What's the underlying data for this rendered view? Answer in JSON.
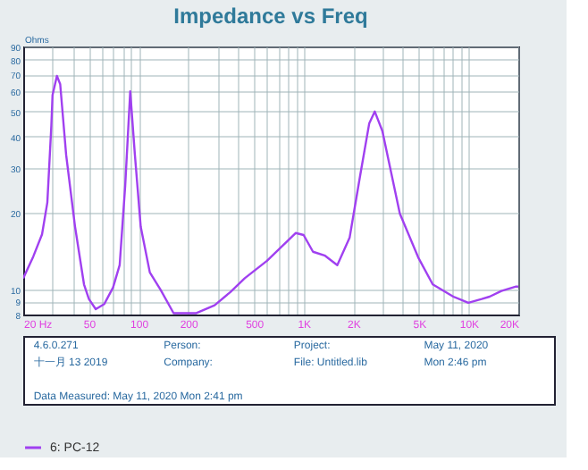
{
  "chart_data": {
    "type": "line",
    "title": "Impedance vs Freq",
    "ylabel": "Ohms",
    "x": [
      20,
      23,
      26,
      28,
      29.6,
      30.1,
      32,
      33.5,
      36.4,
      41.2,
      46.7,
      50,
      55,
      62,
      70,
      76.8,
      83,
      89,
      95,
      103,
      117,
      136,
      163,
      224,
      289,
      360,
      440,
      600,
      895,
      1000,
      1140,
      1350,
      1600,
      1900,
      2200,
      2500,
      2700,
      3000,
      3830,
      4950,
      6060,
      8080,
      9960,
      12000,
      13400,
      15800,
      19400,
      20000
    ],
    "series": [
      {
        "name": "6: PC-12",
        "color": "#a040f0",
        "values": [
          11.1,
          13.5,
          16.5,
          22,
          44,
          58,
          69,
          64,
          33.8,
          17.7,
          10.5,
          9.2,
          8.4,
          8.8,
          10.2,
          12.5,
          25.7,
          60,
          33.8,
          17.7,
          11.7,
          10,
          8.1,
          8.1,
          8.7,
          9.8,
          11.1,
          13,
          16.7,
          16.4,
          14.1,
          13.6,
          12.5,
          16,
          28,
          45,
          50,
          42,
          19.9,
          13.4,
          10.5,
          9.4,
          8.9,
          9.2,
          9.4,
          9.9,
          10.3,
          10.3
        ]
      }
    ],
    "xlim": [
      20,
      20000
    ],
    "xticks": [
      {
        "value": 20,
        "label": "20 Hz"
      },
      {
        "value": 30,
        "label": null
      },
      {
        "value": 40,
        "label": null
      },
      50,
      {
        "value": 60,
        "label": null
      },
      {
        "value": 70,
        "label": null
      },
      {
        "value": 80,
        "label": null
      },
      {
        "value": 90,
        "label": null
      },
      100,
      200,
      {
        "value": 300,
        "label": null
      },
      {
        "value": 400,
        "label": null
      },
      500,
      {
        "value": 600,
        "label": null
      },
      {
        "value": 700,
        "label": null
      },
      {
        "value": 800,
        "label": null
      },
      {
        "value": 900,
        "label": null
      },
      {
        "value": 1000,
        "label": "1K"
      },
      {
        "value": 2000,
        "label": "2K"
      },
      {
        "value": 3000,
        "label": null
      },
      {
        "value": 4000,
        "label": null
      },
      {
        "value": 5000,
        "label": "5K"
      },
      {
        "value": 6000,
        "label": null
      },
      {
        "value": 7000,
        "label": null
      },
      {
        "value": 8000,
        "label": null
      },
      {
        "value": 9000,
        "label": null
      },
      {
        "value": 10000,
        "label": "10K"
      },
      {
        "value": 20000,
        "label": "20K"
      }
    ],
    "ylim": [
      8,
      90
    ],
    "yticks": [
      8,
      9,
      10,
      20,
      30,
      40,
      50,
      60,
      70,
      80,
      90
    ],
    "log": "xy",
    "grid": true,
    "legend": "bottom",
    "marker": "none",
    "line_style": "solid",
    "annotations": [
      "4.6.0.271",
      "十一月 13 2019",
      "Person:",
      "Company:",
      "Project:",
      "File: Untitled.lib",
      "May 11, 2020",
      "Mon  2:46 pm",
      "Data Measured: May 11, 2020 Mon  2:41 pm"
    ]
  }
}
